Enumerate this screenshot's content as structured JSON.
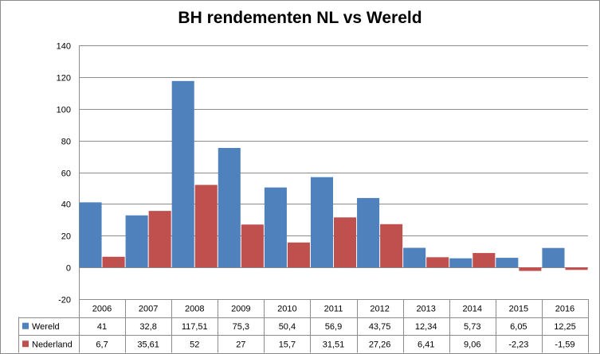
{
  "chart_data": {
    "type": "bar",
    "title": "BH rendementen NL vs Wereld",
    "categories": [
      "2006",
      "2007",
      "2008",
      "2009",
      "2010",
      "2011",
      "2012",
      "2013",
      "2014",
      "2015",
      "2016"
    ],
    "series": [
      {
        "name": "Wereld",
        "color": "#4f81bd",
        "values": [
          41,
          32.8,
          117.51,
          75.3,
          50.4,
          56.9,
          43.75,
          12.34,
          5.73,
          6.05,
          12.25
        ],
        "labels": [
          "41",
          "32,8",
          "117,51",
          "75,3",
          "50,4",
          "56,9",
          "43,75",
          "12,34",
          "5,73",
          "6,05",
          "12,25"
        ]
      },
      {
        "name": "Nederland",
        "color": "#c0504d",
        "values": [
          6.7,
          35.61,
          52,
          27,
          15.7,
          31.51,
          27.26,
          6.41,
          9.06,
          -2.23,
          -1.59
        ],
        "labels": [
          "6,7",
          "35,61",
          "52",
          "27",
          "15,7",
          "31,51",
          "27,26",
          "6,41",
          "9,06",
          "-2,23",
          "-1,59"
        ]
      }
    ],
    "ylim": [
      -20,
      140
    ],
    "yticks": [
      -20,
      0,
      20,
      40,
      60,
      80,
      100,
      120,
      140
    ],
    "grid": true,
    "legend": "data-table"
  }
}
